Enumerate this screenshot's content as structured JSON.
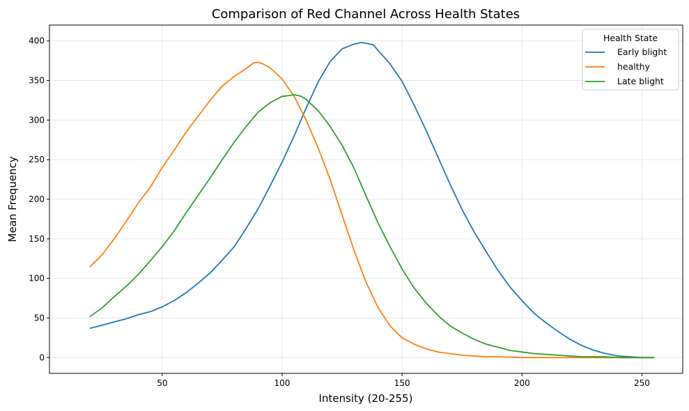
{
  "chart_data": {
    "type": "line",
    "title": "Comparison of Red Channel Across Health States",
    "xlabel": "Intensity (20-255)",
    "ylabel": "Mean Frequency",
    "xlim": [
      3,
      267
    ],
    "ylim": [
      -20,
      420
    ],
    "xticks": [
      50,
      100,
      150,
      200,
      250
    ],
    "yticks": [
      0,
      50,
      100,
      150,
      200,
      250,
      300,
      350,
      400
    ],
    "grid": true,
    "legend": {
      "title": "Health State",
      "position": "top-right"
    },
    "series": [
      {
        "name": "Early blight",
        "color": "#1f77b4",
        "x": [
          20,
          25,
          30,
          35,
          40,
          45,
          50,
          55,
          60,
          65,
          70,
          75,
          80,
          85,
          90,
          95,
          100,
          105,
          110,
          115,
          120,
          125,
          130,
          133,
          135,
          138,
          140,
          145,
          150,
          155,
          160,
          165,
          170,
          175,
          180,
          185,
          190,
          195,
          200,
          205,
          210,
          215,
          220,
          225,
          230,
          235,
          240,
          245,
          250,
          255
        ],
        "y": [
          37,
          41,
          45,
          49,
          54,
          58,
          64,
          72,
          82,
          94,
          107,
          123,
          140,
          163,
          188,
          217,
          247,
          280,
          315,
          348,
          374,
          390,
          396,
          398,
          397,
          395,
          388,
          371,
          349,
          319,
          287,
          253,
          219,
          187,
          159,
          134,
          110,
          89,
          72,
          56,
          44,
          33,
          23,
          15,
          9,
          5,
          2,
          1,
          0,
          0
        ]
      },
      {
        "name": "healthy",
        "color": "#ff7f0e",
        "x": [
          20,
          25,
          30,
          35,
          40,
          45,
          50,
          55,
          60,
          65,
          70,
          75,
          80,
          85,
          88,
          90,
          92,
          95,
          100,
          105,
          110,
          115,
          120,
          125,
          130,
          135,
          140,
          145,
          150,
          155,
          160,
          165,
          170,
          175,
          180,
          185,
          190,
          200,
          210,
          220,
          230,
          240,
          250,
          255
        ],
        "y": [
          115,
          130,
          150,
          172,
          195,
          215,
          240,
          262,
          285,
          305,
          325,
          343,
          355,
          365,
          372,
          373,
          371,
          366,
          352,
          330,
          300,
          265,
          225,
          180,
          135,
          95,
          63,
          40,
          25,
          17,
          11,
          7,
          5,
          3,
          2,
          1,
          1,
          0,
          0,
          0,
          0,
          0,
          0,
          0
        ]
      },
      {
        "name": "Late blight",
        "color": "#2ca02c",
        "x": [
          20,
          25,
          30,
          35,
          40,
          45,
          50,
          55,
          60,
          65,
          70,
          75,
          80,
          85,
          90,
          95,
          100,
          103,
          105,
          108,
          110,
          115,
          120,
          125,
          130,
          135,
          140,
          145,
          150,
          155,
          160,
          165,
          170,
          175,
          180,
          185,
          190,
          195,
          200,
          205,
          210,
          215,
          220,
          225,
          230,
          235,
          240,
          245,
          250,
          255
        ],
        "y": [
          52,
          63,
          77,
          90,
          105,
          122,
          140,
          160,
          183,
          205,
          227,
          250,
          272,
          292,
          310,
          322,
          330,
          331,
          332,
          330,
          326,
          312,
          292,
          268,
          239,
          204,
          170,
          140,
          112,
          88,
          69,
          53,
          40,
          31,
          23,
          17,
          13,
          9,
          7,
          5,
          4,
          3,
          2,
          1,
          1,
          1,
          0,
          0,
          0,
          0
        ]
      }
    ]
  }
}
